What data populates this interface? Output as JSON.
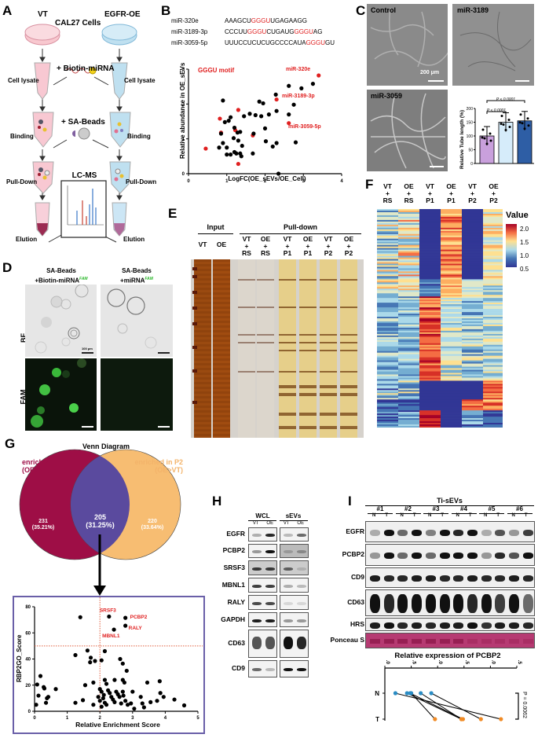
{
  "panels": {
    "A": {
      "letter": "A",
      "title": "CAL27 Cells",
      "left_label": "VT",
      "right_label": "EGFR-OE",
      "steps": {
        "biotin": "+ Biotin-miRNA",
        "beads": "+ SA-Beads",
        "lysate": "Cell lysate",
        "binding": "Binding",
        "pulldown": "Pull-Down",
        "elution": "Elution",
        "lcms": "LC-MS"
      }
    },
    "B": {
      "letter": "B",
      "sequences": [
        {
          "name": "miR-320e",
          "parts": [
            [
              "AAAGCU",
              "k"
            ],
            [
              "GGGU",
              "r"
            ],
            [
              "UGAGAAGG",
              "k"
            ]
          ]
        },
        {
          "name": "miR-3189-3p",
          "parts": [
            [
              "CCCUU",
              "k"
            ],
            [
              "GGGU",
              "r"
            ],
            [
              "CUGAUG",
              "k"
            ],
            [
              "GGGU",
              "r"
            ],
            [
              "AG",
              "k"
            ]
          ]
        },
        {
          "name": "miR-3059-5p",
          "parts": [
            [
              "UUUCCUCUCUGCCCCAUA",
              "k"
            ],
            [
              "GGGU",
              "r"
            ],
            [
              "GU",
              "k"
            ]
          ]
        }
      ],
      "legend": "GGGU motif",
      "labels": [
        "miR-320e",
        "miR-3189-3p",
        "miR-3059-5p"
      ]
    },
    "C": {
      "letter": "C",
      "images": [
        {
          "label": "Control",
          "color": "#b48ac8"
        },
        {
          "label": "miR-3189",
          "color": "#a8c8e0"
        },
        {
          "label": "miR-3059",
          "color": "#3060a0"
        }
      ],
      "scale_bar": "200 μm",
      "p_values": [
        "P < 0.0001",
        "P < 0.0001"
      ]
    },
    "D": {
      "letter": "D",
      "col_headers": [
        {
          "main": "SA-Beads",
          "sub": "+Biotin-miRNA",
          "sup": "FAM"
        },
        {
          "main": "SA-Beads",
          "sub": "+miRNA",
          "sup": "FAM"
        }
      ],
      "row_labels": [
        "BF",
        "FAM"
      ],
      "scale_bar": "100 μm"
    },
    "E": {
      "letter": "E",
      "group_input": "Input",
      "group_pulldown": "Pull-down",
      "lanes": [
        {
          "top": "VT",
          "mid": "",
          "bot": ""
        },
        {
          "top": "OE",
          "mid": "",
          "bot": ""
        },
        {
          "top": "VT",
          "mid": "+",
          "bot": "RS"
        },
        {
          "top": "OE",
          "mid": "+",
          "bot": "RS"
        },
        {
          "top": "VT",
          "mid": "+",
          "bot": "P1"
        },
        {
          "top": "OE",
          "mid": "+",
          "bot": "P1"
        },
        {
          "top": "VT",
          "mid": "+",
          "bot": "P2"
        },
        {
          "top": "OE",
          "mid": "+",
          "bot": "P2"
        }
      ]
    },
    "F": {
      "letter": "F",
      "columns": [
        {
          "top": "VT",
          "mid": "+",
          "bot": "RS"
        },
        {
          "top": "OE",
          "mid": "+",
          "bot": "RS"
        },
        {
          "top": "VT",
          "mid": "+",
          "bot": "P1"
        },
        {
          "top": "OE",
          "mid": "+",
          "bot": "P1"
        },
        {
          "top": "VT",
          "mid": "+",
          "bot": "P2"
        },
        {
          "top": "OE",
          "mid": "+",
          "bot": "P2"
        }
      ],
      "legend_title": "Value",
      "legend_ticks": [
        "2.0",
        "1.5",
        "1.0",
        "0.5"
      ]
    },
    "G": {
      "letter": "G",
      "venn_title": "Venn Diagram",
      "set1_label": "enriched in P1",
      "set1_sub": "(OE>VT)",
      "set2_label": "enriched in P2",
      "set2_sub": "(OE>VT)",
      "only1": "231",
      "only1_pct": "(35.21%)",
      "both": "205",
      "both_pct": "(31.25%)",
      "only2": "220",
      "only2_pct": "(33.64%)",
      "colors": {
        "set1": "#9e0e46",
        "set2": "#f7bd72",
        "overlap": "#5a4a9e"
      }
    },
    "H": {
      "letter": "H",
      "col_groups": [
        "WCL",
        "sEVs"
      ],
      "lanes": [
        "VT",
        "OE"
      ],
      "rows": [
        "EGFR",
        "PCBP2",
        "SRSF3",
        "MBNL1",
        "RALY",
        "GAPDH",
        "CD63",
        "CD9"
      ]
    },
    "I": {
      "letter": "I",
      "title": "Ti-sEVs",
      "patients": [
        "#1",
        "#2",
        "#3",
        "#4",
        "#5",
        "#6"
      ],
      "lanes": [
        "N",
        "T"
      ],
      "rows": [
        "EGFR",
        "PCBP2",
        "CD9",
        "CD63",
        "HRS",
        "Ponceau S"
      ],
      "plot_title": "Relative expression of PCBP2",
      "p_value": "P = 0.0062"
    }
  },
  "chart_data": [
    {
      "id": "B",
      "type": "scatter",
      "title": "",
      "xlabel": "LogFC(OE_sEVs/OE_Cell)",
      "ylabel": "Relative abundance in OE_sEVs",
      "xlim": [
        0,
        4
      ],
      "ylim": [
        0,
        3
      ],
      "xticks": [
        "0",
        "1",
        "2",
        "3",
        "4"
      ],
      "yticks": [
        "0",
        "1",
        "2",
        "3"
      ],
      "legend": [
        {
          "name": "GGGU motif",
          "color": "#e02020"
        }
      ],
      "series": [
        {
          "name": "GGGU motif",
          "color": "#e02020",
          "points": [
            [
              3.4,
              2.82
            ],
            [
              2.3,
              2.13
            ],
            [
              2.62,
              1.45
            ],
            [
              0.45,
              0.72
            ],
            [
              0.82,
              1.58
            ],
            [
              0.85,
              1.18
            ],
            [
              1.3,
              1.83
            ],
            [
              1.22,
              1.25
            ],
            [
              1.68,
              1.1
            ],
            [
              1.3,
              0.28
            ]
          ]
        },
        {
          "name": "other",
          "color": "#000000",
          "points": [
            [
              3.25,
              2.58
            ],
            [
              2.95,
              2.45
            ],
            [
              2.62,
              2.52
            ],
            [
              2.28,
              2.27
            ],
            [
              2.75,
              1.98
            ],
            [
              0.9,
              2.1
            ],
            [
              1.85,
              2.07
            ],
            [
              1.95,
              2.02
            ],
            [
              2.3,
              1.8
            ],
            [
              2.62,
              1.7
            ],
            [
              2.1,
              1.7
            ],
            [
              1.75,
              1.68
            ],
            [
              1.9,
              1.65
            ],
            [
              1.6,
              1.72
            ],
            [
              1.45,
              1.65
            ],
            [
              1.1,
              1.62
            ],
            [
              0.95,
              1.48
            ],
            [
              1.05,
              1.52
            ],
            [
              1.2,
              1.32
            ],
            [
              1.28,
              1.18
            ],
            [
              1.35,
              1.2
            ],
            [
              1.7,
              1.15
            ],
            [
              2.0,
              1.3
            ],
            [
              0.85,
              1.15
            ],
            [
              1.18,
              1.02
            ],
            [
              1.3,
              0.95
            ],
            [
              2.02,
              0.93
            ],
            [
              2.2,
              0.78
            ],
            [
              2.3,
              0.88
            ],
            [
              2.8,
              0.9
            ],
            [
              0.9,
              0.88
            ],
            [
              0.8,
              0.75
            ],
            [
              1.0,
              0.75
            ],
            [
              1.4,
              0.8
            ],
            [
              1.2,
              0.62
            ],
            [
              1.1,
              0.55
            ],
            [
              1.0,
              0.55
            ],
            [
              1.25,
              0.58
            ],
            [
              1.35,
              0.58
            ],
            [
              1.68,
              0.58
            ],
            [
              1.38,
              0.5
            ],
            [
              2.35,
              0.0
            ]
          ]
        }
      ]
    },
    {
      "id": "C",
      "type": "bar",
      "title": "",
      "ylabel": "Relative Tube length (%)",
      "categories": [
        "Control",
        "miR-3189",
        "miR-3059"
      ],
      "values": [
        100,
        150,
        155
      ],
      "colors": [
        "#c9a0dc",
        "#d6ecfa",
        "#2e5ea5"
      ],
      "ylim": [
        0,
        200
      ],
      "yticks": [
        "0",
        "50",
        "100",
        "150",
        "200"
      ],
      "annotations": [
        "P < 0.0001",
        "P < 0.0001"
      ]
    },
    {
      "id": "G",
      "type": "scatter",
      "xlabel": "Relative Enrichment Score",
      "ylabel": "RBP2GO_Score",
      "xlim": [
        0,
        5
      ],
      "ylim": [
        0,
        80
      ],
      "xticks": [
        "0",
        "1",
        "2",
        "3",
        "4",
        "5"
      ],
      "yticks": [
        "0",
        "20",
        "40",
        "60",
        "80"
      ],
      "thresholds": {
        "x": 2,
        "y": 50
      },
      "labeled_points": [
        {
          "name": "SRSF3",
          "x": 2.28,
          "y": 72.5
        },
        {
          "name": "PCBP2",
          "x": 2.78,
          "y": 71.5
        },
        {
          "name": "MBNL1",
          "x": 2.43,
          "y": 62.5
        },
        {
          "name": "RALY",
          "x": 2.78,
          "y": 65.5
        }
      ],
      "points": [
        [
          1.4,
          72
        ],
        [
          1.62,
          46.5
        ],
        [
          2.15,
          46
        ],
        [
          1.72,
          41
        ],
        [
          1.25,
          43
        ],
        [
          1.7,
          37.5
        ],
        [
          1.85,
          38.5
        ],
        [
          2.05,
          39
        ],
        [
          2.62,
          40
        ],
        [
          2.7,
          36.5
        ],
        [
          2.82,
          31
        ],
        [
          0.18,
          27
        ],
        [
          0.08,
          20.5
        ],
        [
          0.28,
          18.5
        ],
        [
          0.3,
          17.5
        ],
        [
          0.65,
          17
        ],
        [
          1.55,
          20
        ],
        [
          1.8,
          22
        ],
        [
          2.15,
          24
        ],
        [
          2.2,
          21
        ],
        [
          2.45,
          24
        ],
        [
          2.7,
          24
        ],
        [
          2.75,
          22
        ],
        [
          3.45,
          22
        ],
        [
          3.83,
          23
        ],
        [
          3.85,
          14
        ],
        [
          0.12,
          12
        ],
        [
          0.38,
          10
        ],
        [
          0.42,
          11
        ],
        [
          0.35,
          6.5
        ],
        [
          0.05,
          5
        ],
        [
          1.25,
          6.5
        ],
        [
          1.48,
          8.5
        ],
        [
          1.8,
          5
        ],
        [
          1.95,
          11
        ],
        [
          2.0,
          17
        ],
        [
          2.05,
          15
        ],
        [
          2.1,
          10
        ],
        [
          2.15,
          6.5
        ],
        [
          2.2,
          5
        ],
        [
          2.25,
          16
        ],
        [
          2.3,
          14
        ],
        [
          2.35,
          11
        ],
        [
          2.4,
          9
        ],
        [
          2.45,
          7
        ],
        [
          2.5,
          15
        ],
        [
          2.55,
          13
        ],
        [
          2.6,
          11
        ],
        [
          2.65,
          6
        ],
        [
          2.7,
          15
        ],
        [
          2.72,
          12
        ],
        [
          2.78,
          8
        ],
        [
          2.85,
          5
        ],
        [
          2.95,
          6
        ],
        [
          3.0,
          15
        ],
        [
          3.05,
          2
        ],
        [
          3.25,
          11
        ],
        [
          3.3,
          6
        ],
        [
          3.35,
          3
        ],
        [
          3.55,
          7
        ],
        [
          3.75,
          8
        ],
        [
          3.95,
          11
        ],
        [
          4.28,
          9
        ],
        [
          4.58,
          4.5
        ],
        [
          2.05,
          3.5
        ],
        [
          2.0,
          8
        ],
        [
          2.12,
          12.5
        ]
      ]
    },
    {
      "id": "I",
      "type": "line",
      "title": "Relative expression of PCBP2",
      "xlabel": "",
      "categories": [
        "N",
        "T"
      ],
      "xlim": [
        0,
        2.5
      ],
      "ticks": [
        "0.0",
        "0.5",
        "1.0",
        "1.5",
        "2.0",
        "2.5"
      ],
      "series": [
        {
          "name": "#1",
          "values": [
            0.2,
            2.2
          ]
        },
        {
          "name": "#2",
          "values": [
            0.42,
            1.45
          ]
        },
        {
          "name": "#3",
          "values": [
            0.48,
            1.48
          ]
        },
        {
          "name": "#4",
          "values": [
            0.5,
            0.95
          ]
        },
        {
          "name": "#5",
          "values": [
            0.68,
            1.45
          ]
        },
        {
          "name": "#6",
          "values": [
            0.88,
            1.82
          ]
        }
      ],
      "colors": {
        "N": "#2a8cc4",
        "T": "#f08a24"
      },
      "annotation": "P = 0.0062"
    }
  ]
}
